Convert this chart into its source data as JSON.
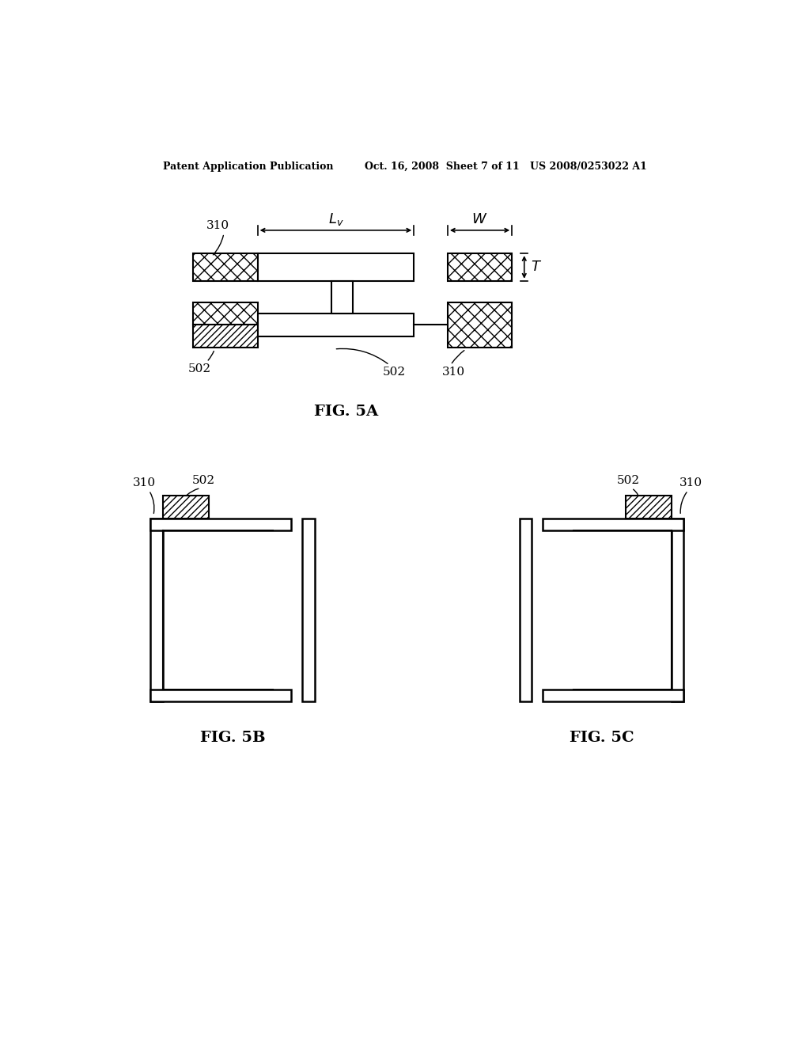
{
  "background_color": "#ffffff",
  "header_left": "Patent Application Publication",
  "header_mid": "Oct. 16, 2008  Sheet 7 of 11",
  "header_right": "US 2008/0253022 A1",
  "fig5a_label": "FIG. 5A",
  "fig5b_label": "FIG. 5B",
  "fig5c_label": "FIG. 5C",
  "label_310": "310",
  "label_502": "502"
}
